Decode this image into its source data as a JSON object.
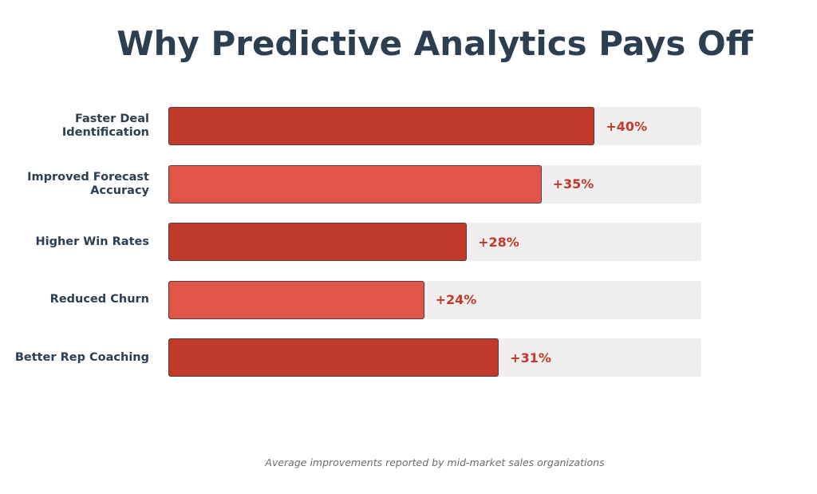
{
  "chart_data": {
    "type": "bar",
    "orientation": "horizontal",
    "title": "Why Predictive Analytics Pays Off",
    "categories": [
      "Faster Deal\nIdentification",
      "Improved Forecast\nAccuracy",
      "Higher Win Rates",
      "Reduced Churn",
      "Better Rep Coaching"
    ],
    "values": [
      40,
      35,
      28,
      24,
      31
    ],
    "value_labels": [
      "+40%",
      "+35%",
      "+28%",
      "+24%",
      "+31%"
    ],
    "bar_colors": [
      "#c0392b",
      "#e05548",
      "#c0392b",
      "#e05548",
      "#c0392b"
    ],
    "track_color": "#f0eeee",
    "xlim": [
      0,
      50
    ],
    "xlabel": "",
    "ylabel": "",
    "grid": false,
    "legend": null,
    "annotation": "Average improvements reported by mid-market sales organizations"
  },
  "header": {
    "title": "Why Predictive Analytics Pays Off"
  },
  "footer": {
    "note": "Average improvements reported by mid-market sales organizations"
  }
}
